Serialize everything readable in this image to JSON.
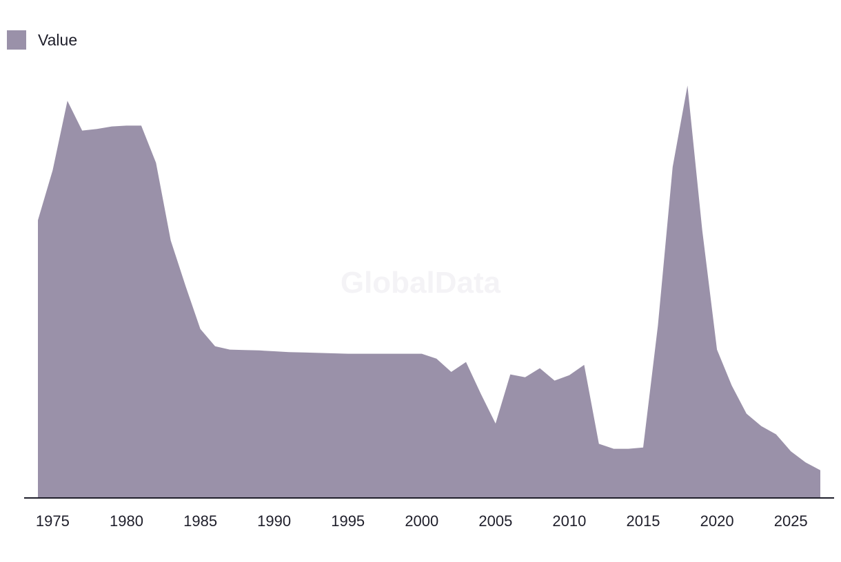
{
  "legend": {
    "label": "Value",
    "color": "#9a91a9"
  },
  "watermark": "GlobalData",
  "colors": {
    "area": "#9a91a9",
    "axis": "#1e1e2a",
    "background": "#ffffff"
  },
  "chart_data": {
    "type": "area",
    "title": "",
    "xlabel": "",
    "ylabel": "",
    "grid": false,
    "legend_position": "top-left",
    "x_ticks": [
      1975,
      1980,
      1985,
      1990,
      1995,
      2000,
      2005,
      2010,
      2015,
      2020,
      2025
    ],
    "ylim": [
      0,
      100
    ],
    "series": [
      {
        "name": "Value",
        "x": [
          1974,
          1975,
          1976,
          1977,
          1978,
          1979,
          1980,
          1981,
          1982,
          1983,
          1984,
          1985,
          1986,
          1987,
          1988,
          1989,
          1990,
          1991,
          1992,
          1993,
          1994,
          1995,
          1996,
          1997,
          1998,
          1999,
          2000,
          2001,
          2002,
          2003,
          2004,
          2005,
          2006,
          2007,
          2008,
          2009,
          2010,
          2011,
          2012,
          2013,
          2014,
          2015,
          2016,
          2017,
          2018,
          2019,
          2020,
          2021,
          2022,
          2023,
          2024,
          2025,
          2026,
          2027
        ],
        "values": [
          67.2,
          79.3,
          96.1,
          88.9,
          89.3,
          89.9,
          90.1,
          90.1,
          81.1,
          62.3,
          51.3,
          40.9,
          36.7,
          35.9,
          35.8,
          35.7,
          35.5,
          35.3,
          35.2,
          35.1,
          35.0,
          34.9,
          34.9,
          34.9,
          34.9,
          34.9,
          34.9,
          33.7,
          30.5,
          32.9,
          25.2,
          18.0,
          29.9,
          29.2,
          31.4,
          28.4,
          29.7,
          32.2,
          13.1,
          11.9,
          11.9,
          12.2,
          41.7,
          80.1,
          99.8,
          64.8,
          35.9,
          27.2,
          20.4,
          17.4,
          15.4,
          11.3,
          8.6,
          6.7
        ]
      }
    ]
  }
}
